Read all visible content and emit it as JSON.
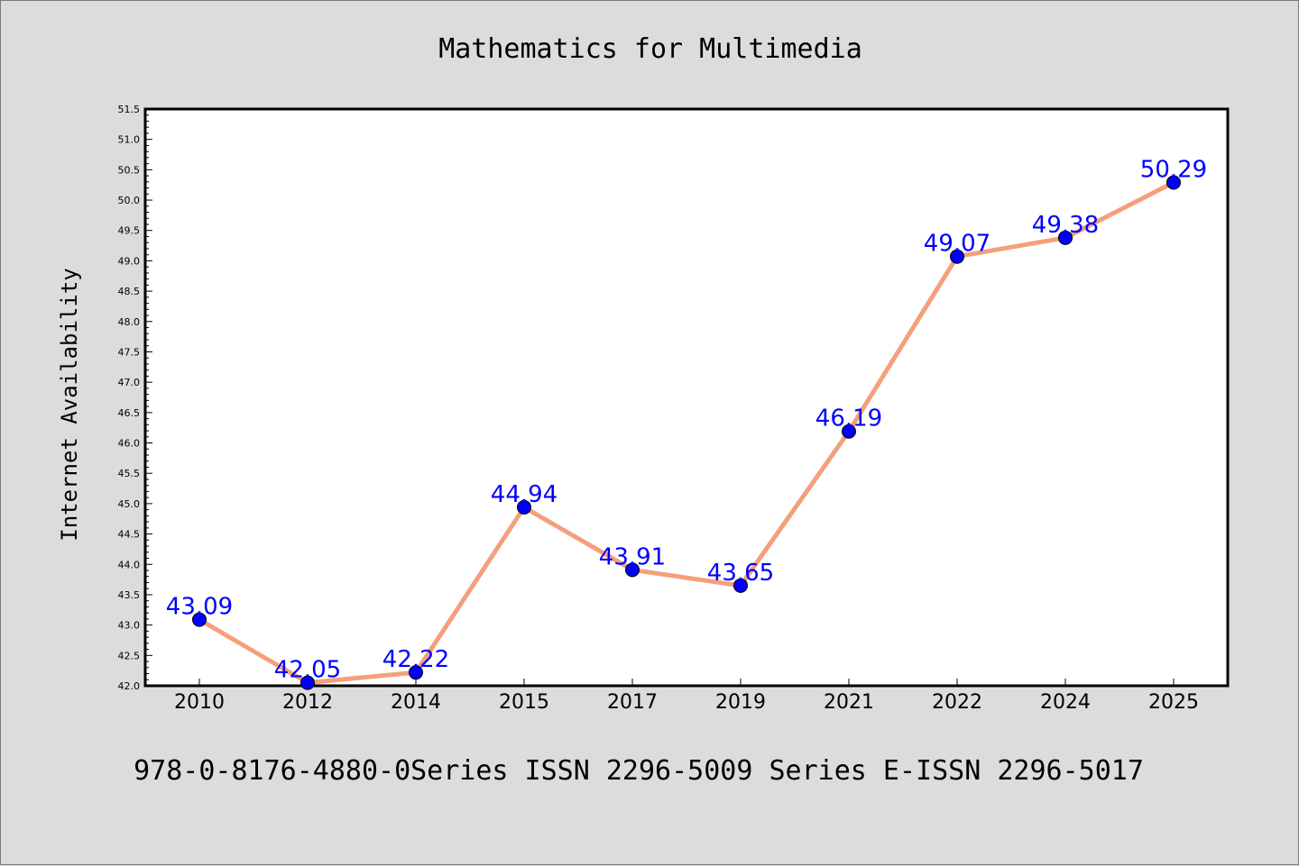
{
  "chart_data": {
    "type": "line",
    "title": "Mathematics for Multimedia",
    "xlabel": "",
    "ylabel": "Internet Availability",
    "categories": [
      "2010",
      "2012",
      "2014",
      "2015",
      "2017",
      "2019",
      "2021",
      "2022",
      "2024",
      "2025"
    ],
    "series": [
      {
        "values": [
          43.09,
          42.05,
          42.22,
          44.94,
          43.91,
          43.65,
          46.19,
          49.07,
          49.38,
          50.29
        ],
        "line_color": "#f4a07c",
        "marker_color": "#0000ff",
        "label_color": "#0000ff"
      }
    ],
    "ylim": [
      42.0,
      51.5
    ],
    "ytick_step": 0.5,
    "grid": false,
    "legend": "none",
    "footer": "978-0-8176-4880-0Series ISSN 2296-5009 Series E-ISSN 2296-5017",
    "colors": {
      "background": "#dcdcdc",
      "plot_background": "#ffffff",
      "axes": "#000000"
    }
  }
}
